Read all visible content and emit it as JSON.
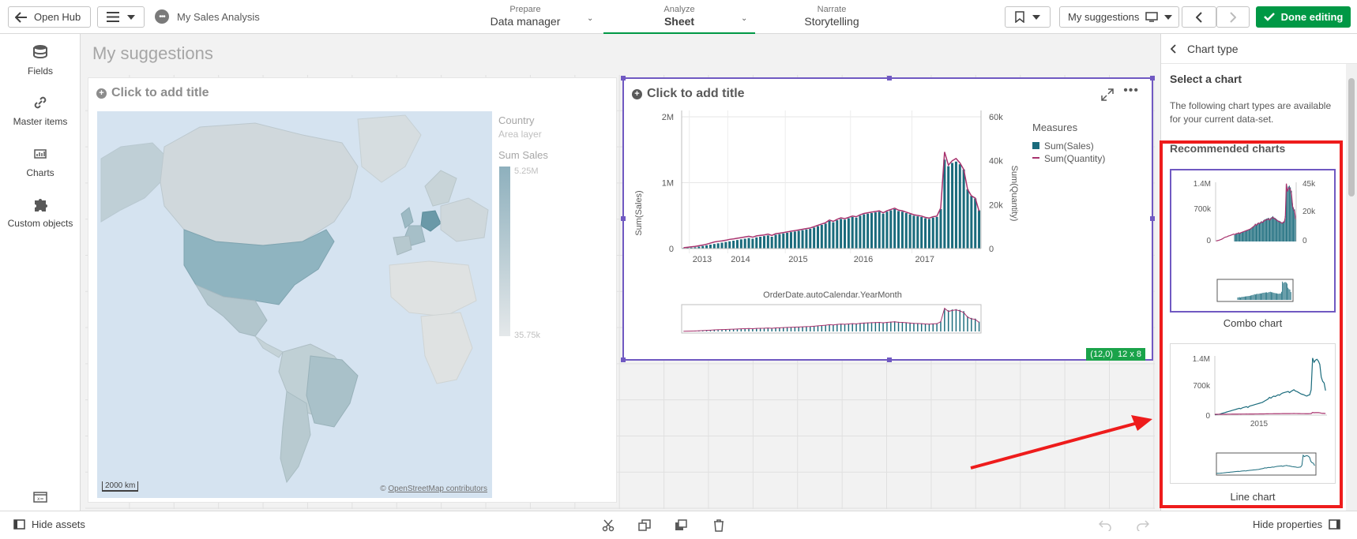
{
  "topbar": {
    "open_hub": "Open Hub",
    "app_title": "My Sales Analysis",
    "tabs": [
      {
        "small": "Prepare",
        "big": "Data manager"
      },
      {
        "small": "Analyze",
        "big": "Sheet"
      },
      {
        "small": "Narrate",
        "big": "Storytelling"
      }
    ],
    "sheet_selector": "My suggestions",
    "done_editing": "Done editing"
  },
  "assets": {
    "items": [
      {
        "label": "Fields",
        "icon": "database-icon"
      },
      {
        "label": "Master items",
        "icon": "link-icon"
      },
      {
        "label": "Charts",
        "icon": "bar-chart-icon"
      },
      {
        "label": "Custom objects",
        "icon": "puzzle-icon"
      }
    ]
  },
  "sheet": {
    "title": "My suggestions"
  },
  "map_object": {
    "title": "Click to add title",
    "legend_title": "Country",
    "legend_layer": "Area layer",
    "legend_measure": "Sum Sales",
    "legend_max": "5.25M",
    "legend_min": "35.75k",
    "scale": "2000 km",
    "attribution_prefix": "©",
    "attribution_link": "OpenStreetMap contributors"
  },
  "combo_object": {
    "title": "Click to add title",
    "x_title": "OrderDate.autoCalendar.YearMonth",
    "y_left_title": "Sum(Sales)",
    "y_right_title": "Sum(Quantity)",
    "legend_title": "Measures",
    "position_badge": "(12,0)",
    "size_badge": "12 x 8",
    "colors": {
      "sales": "#1a6b7c",
      "quantity": "#a8336e"
    }
  },
  "chart_data": {
    "type": "bar",
    "x_ticks": [
      "2013",
      "2014",
      "2015",
      "2016",
      "2017"
    ],
    "y_left_ticks": [
      "0",
      "1M",
      "2M"
    ],
    "y_right_ticks": [
      "0",
      "20k",
      "40k",
      "60k"
    ],
    "ylim_left": [
      0,
      2000000
    ],
    "ylim_right": [
      0,
      60000
    ],
    "series": [
      {
        "name": "Sum(Sales)",
        "type": "bar",
        "axis": "left",
        "values": [
          10000,
          12000,
          15000,
          20000,
          30000,
          40000,
          50000,
          60000,
          70000,
          80000,
          90000,
          100000,
          110000,
          120000,
          130000,
          140000,
          150000,
          160000,
          150000,
          170000,
          180000,
          190000,
          200000,
          180000,
          210000,
          220000,
          230000,
          240000,
          250000,
          260000,
          270000,
          280000,
          290000,
          300000,
          320000,
          340000,
          360000,
          380000,
          420000,
          400000,
          430000,
          450000,
          440000,
          460000,
          480000,
          470000,
          500000,
          520000,
          530000,
          540000,
          550000,
          560000,
          530000,
          560000,
          580000,
          600000,
          570000,
          560000,
          540000,
          520000,
          500000,
          490000,
          480000,
          460000,
          450000,
          470000,
          480000,
          600000,
          1350000,
          1250000,
          1300000,
          1320000,
          1280000,
          1200000,
          900000,
          800000,
          760000,
          580000
        ]
      },
      {
        "name": "Sum(Quantity)",
        "type": "line",
        "axis": "right",
        "values": [
          400,
          600,
          800,
          1000,
          1300,
          1600,
          2000,
          2500,
          3000,
          3300,
          3500,
          3800,
          4200,
          4400,
          4700,
          5000,
          5300,
          5600,
          5200,
          5800,
          6000,
          6200,
          6600,
          6000,
          6800,
          7000,
          7300,
          7600,
          7900,
          8200,
          8500,
          8800,
          9100,
          9400,
          10000,
          10600,
          11200,
          11800,
          13000,
          12400,
          13300,
          14000,
          13600,
          14200,
          14800,
          14500,
          15400,
          16000,
          16300,
          16600,
          16900,
          17200,
          16300,
          17200,
          17800,
          18400,
          17500,
          17200,
          16600,
          16000,
          15400,
          15100,
          14800,
          14200,
          13900,
          14500,
          14800,
          18500,
          44000,
          38000,
          40000,
          41000,
          39000,
          36000,
          27000,
          24000,
          23000,
          17000
        ]
      }
    ]
  },
  "props": {
    "back_label": "Chart type",
    "select_heading": "Select a chart",
    "description": "The following chart types are available for your current data-set.",
    "recommended_heading": "Recommended charts",
    "cards": [
      {
        "label": "Combo chart",
        "y_left": [
          "1.4M",
          "700k",
          "0"
        ],
        "y_right": [
          "45k",
          "20k",
          "0"
        ]
      },
      {
        "label": "Line chart",
        "y_left": [
          "1.4M",
          "700k",
          "0"
        ],
        "x_tick": "2015"
      }
    ]
  },
  "bottombar": {
    "hide_assets": "Hide assets",
    "hide_properties": "Hide properties"
  }
}
